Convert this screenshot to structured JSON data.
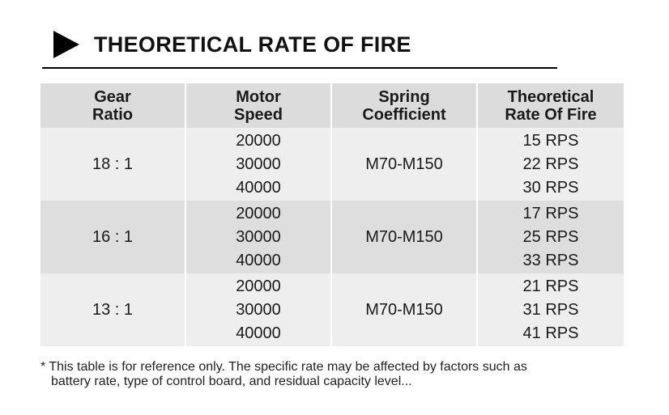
{
  "title": "THEORETICAL RATE OF FIRE",
  "table": {
    "headers": [
      [
        "Gear",
        "Ratio"
      ],
      [
        "Motor",
        "Speed"
      ],
      [
        "Spring",
        "Coefficient"
      ],
      [
        "Theoretical",
        "Rate Of Fire"
      ]
    ],
    "rows": [
      {
        "gear_ratio": "18 : 1",
        "motor_speeds": [
          "20000",
          "30000",
          "40000"
        ],
        "spring": "M70-M150",
        "rates": [
          "15 RPS",
          "22 RPS",
          "30 RPS"
        ]
      },
      {
        "gear_ratio": "16 : 1",
        "motor_speeds": [
          "20000",
          "30000",
          "40000"
        ],
        "spring": "M70-M150",
        "rates": [
          "17 RPS",
          "25 RPS",
          "33 RPS"
        ]
      },
      {
        "gear_ratio": "13 : 1",
        "motor_speeds": [
          "20000",
          "30000",
          "40000"
        ],
        "spring": "M70-M150",
        "rates": [
          "21 RPS",
          "31 RPS",
          "41 RPS"
        ]
      }
    ]
  },
  "footnote": {
    "line1": "* This table is for reference only. The specific rate may be affected by factors such as",
    "line2": "battery rate, type of control board, and residual capacity level..."
  },
  "colors": {
    "header_bg": "#dcdcdc",
    "row_light": "#eeeeee",
    "row_dark": "#dedede",
    "text": "#1a1a1a"
  },
  "icons": {
    "title_marker": "triangle-right-icon"
  }
}
